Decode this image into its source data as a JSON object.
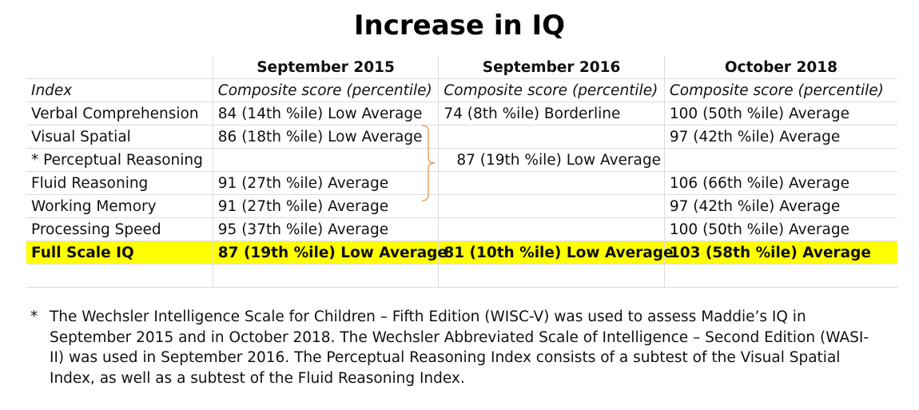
{
  "title": "Increase in IQ",
  "table": {
    "headers": [
      "",
      "September 2015",
      "September 2016",
      "October 2018"
    ],
    "subheaders": [
      "Index",
      "Composite score (percentile)",
      "Composite score (percentile)",
      "Composite score (percentile)"
    ],
    "rows": [
      [
        "Verbal Comprehension",
        "84 (14th %ile) Low Average",
        "74 (8th %ile) Borderline",
        "100 (50th %ile) Average"
      ],
      [
        "Visual Spatial",
        "86 (18th %ile) Low Average",
        "",
        " 97 (42th %ile) Average"
      ],
      [
        "* Perceptual Reasoning",
        "",
        "87 (19th %ile) Low Average",
        ""
      ],
      [
        "Fluid Reasoning",
        "91 (27th %ile) Average",
        "",
        "106 (66th %ile) Average"
      ],
      [
        "Working Memory",
        "91 (27th %ile) Average",
        "",
        " 97 (42th %ile) Average"
      ],
      [
        "Processing Speed",
        "95 (37th %ile) Average",
        "",
        "100 (50th %ile) Average"
      ]
    ],
    "full_scale": [
      "Full Scale IQ",
      "87 (19th %ile) Low Average",
      "81 (10th %ile) Low Average",
      "103 (58th %ile) Average"
    ],
    "highlight_color": "#ffff00",
    "bracket_color": "#e8a060"
  },
  "footnote": {
    "marker": "*",
    "text": "The Wechsler Intelligence Scale for Children – Fifth Edition (WISC-V) was used to assess Maddie’s IQ in September 2015 and in October 2018. The Wechsler Abbreviated Scale of Intelligence – Second Edition (WASI-II) was used in September 2016. The Perceptual Reasoning Index consists of a subtest of the Visual Spatial Index, as well as a subtest of the Fluid Reasoning Index."
  }
}
